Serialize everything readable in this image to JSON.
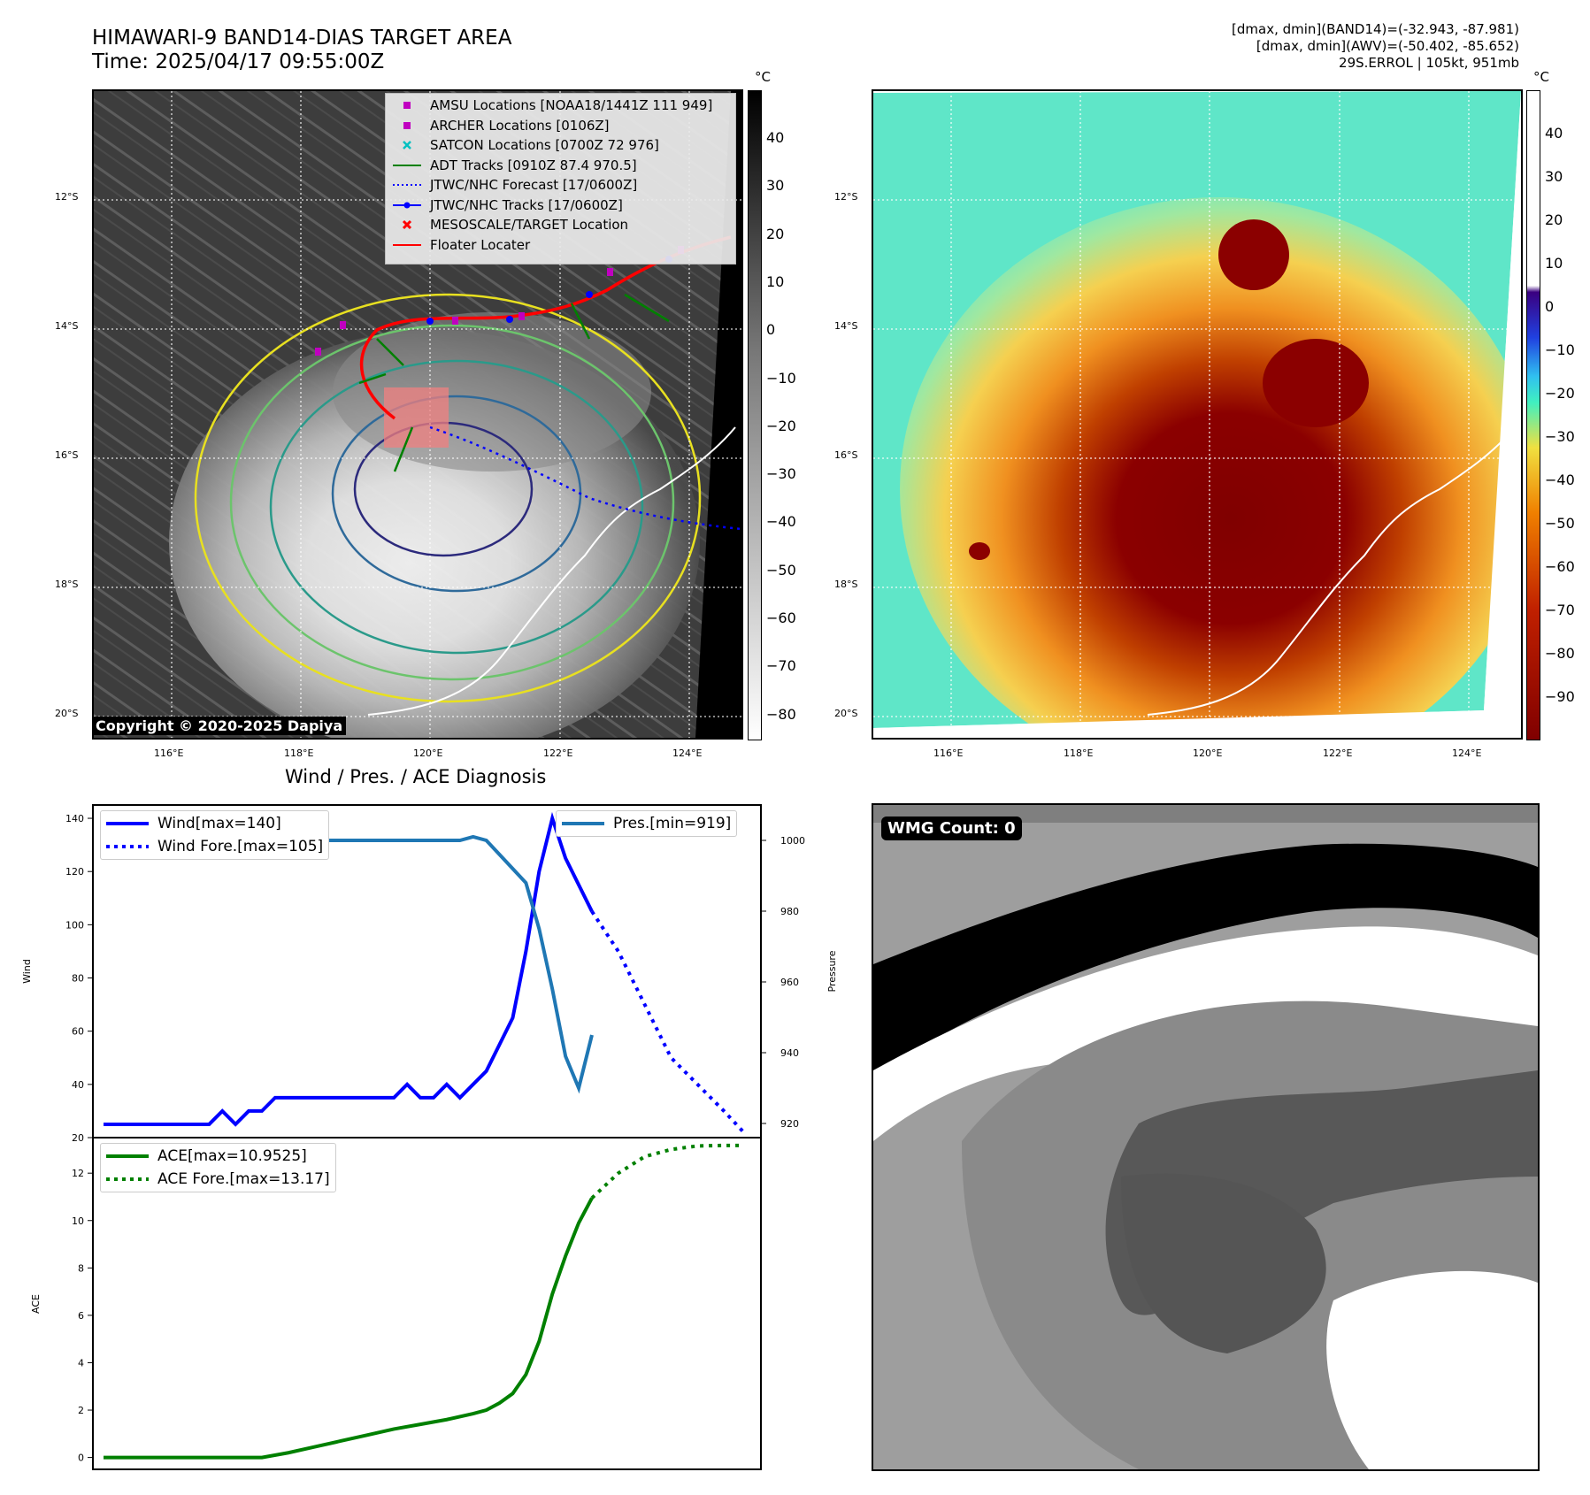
{
  "header": {
    "title_line1": "HIMAWARI-9 BAND14-DIAS TARGET AREA",
    "title_line2": "Time: 2025/04/17 09:55:00Z",
    "right_line1": "[dmax, dmin](BAND14)=(-32.943, -87.981)",
    "right_line2": "[dmax, dmin](AWV)=(-50.402, -85.652)",
    "right_line3": "29S.ERROL | 105kt, 951mb"
  },
  "maps": {
    "lat_ticks": [
      "12°S",
      "14°S",
      "16°S",
      "18°S",
      "20°S"
    ],
    "lon_ticks": [
      "116°E",
      "118°E",
      "120°E",
      "122°E",
      "124°E"
    ],
    "unit": "°C",
    "left_colorbar_ticks": [
      "40",
      "30",
      "20",
      "10",
      "0",
      "−10",
      "−20",
      "−30",
      "−40",
      "−50",
      "−60",
      "−70",
      "−80"
    ],
    "right_colorbar_ticks": [
      "40",
      "30",
      "20",
      "10",
      "0",
      "−10",
      "−20",
      "−30",
      "−40",
      "−50",
      "−60",
      "−70",
      "−80",
      "−90"
    ],
    "copyright": "Copyright © 2020-2025 Dapiya",
    "legend": [
      {
        "label": "AMSU Locations [NOAA18/1441Z 111 949]",
        "marker": "square",
        "color": "#c000c0"
      },
      {
        "label": "ARCHER Locations [0106Z]",
        "marker": "square",
        "color": "#c000c0"
      },
      {
        "label": "SATCON Locations [0700Z 72 976]",
        "marker": "x",
        "color": "#00c0c0"
      },
      {
        "label": "ADT Tracks [0910Z 87.4 970.5]",
        "marker": "line",
        "color": "#008000"
      },
      {
        "label": "JTWC/NHC Forecast [17/0600Z]",
        "marker": "dotted",
        "color": "#0000ff"
      },
      {
        "label": "JTWC/NHC Tracks [17/0600Z]",
        "marker": "line-dot",
        "color": "#0000ff"
      },
      {
        "label": "MESOSCALE/TARGET Location",
        "marker": "x",
        "color": "#ff0000"
      },
      {
        "label": "Floater Locater",
        "marker": "line",
        "color": "#ff0000"
      }
    ]
  },
  "diagnosis": {
    "title": "Wind / Pres. / ACE Diagnosis",
    "wind_ylabel": "Wind",
    "pressure_ylabel": "Pressure",
    "ace_ylabel": "ACE",
    "legend_wind": "Wind[max=140]",
    "legend_wind_fore": "Wind Fore.[max=105]",
    "legend_pres": "Pres.[min=919]",
    "legend_ace": "ACE[max=10.9525]",
    "legend_ace_fore": "ACE Fore.[max=13.17]"
  },
  "wmg": {
    "label": "WMG Count: 0"
  },
  "chart_data": [
    {
      "type": "line",
      "title": "Wind / Pres. / ACE Diagnosis",
      "ylabel": "Wind",
      "ylim": [
        20,
        145
      ],
      "y_ticks": [
        20,
        40,
        60,
        80,
        100,
        120,
        140
      ],
      "colors": {
        "wind": "#0000ff",
        "pressure": "#1f77b4"
      },
      "series": [
        {
          "name": "Wind[max=140]",
          "axis": "left",
          "style": "solid",
          "x": [
            0,
            1,
            2,
            3,
            4,
            5,
            6,
            7,
            8,
            9,
            10,
            11,
            12,
            13,
            14,
            15,
            16,
            17,
            18,
            19,
            20,
            21,
            22,
            23,
            24,
            25,
            26,
            27,
            28,
            29,
            30,
            31,
            32,
            33,
            34,
            35,
            36,
            37
          ],
          "values": [
            25,
            25,
            25,
            25,
            25,
            25,
            25,
            25,
            25,
            30,
            25,
            30,
            30,
            35,
            35,
            35,
            35,
            35,
            35,
            35,
            35,
            35,
            35,
            40,
            35,
            35,
            40,
            35,
            40,
            45,
            55,
            65,
            90,
            120,
            140,
            125,
            115,
            105
          ]
        },
        {
          "name": "Wind Fore.[max=105]",
          "axis": "left",
          "style": "dotted",
          "x": [
            37,
            39,
            41,
            43,
            45,
            47,
            48.5
          ],
          "values": [
            105,
            90,
            70,
            50,
            40,
            30,
            22
          ]
        },
        {
          "name": "Pres.[min=919]",
          "axis": "right",
          "style": "solid",
          "ylim": [
            916,
            1010
          ],
          "y_ticks": [
            920,
            940,
            960,
            980,
            1000
          ],
          "x": [
            0,
            1,
            2,
            3,
            4,
            5,
            6,
            7,
            8,
            9,
            10,
            11,
            12,
            13,
            14,
            15,
            16,
            17,
            18,
            19,
            20,
            21,
            22,
            23,
            24,
            25,
            26,
            27,
            28,
            29,
            30,
            31,
            32,
            33,
            34,
            35,
            36,
            37
          ],
          "values": [
            1008,
            1006,
            1006,
            1004,
            1002,
            1002,
            1000,
            1000,
            1000,
            1000,
            1000,
            1000,
            1000,
            1000,
            1000,
            1000,
            1000,
            1000,
            1000,
            1000,
            1000,
            1000,
            1000,
            1000,
            1000,
            1000,
            1000,
            1000,
            1001,
            1000,
            996,
            992,
            988,
            975,
            958,
            939,
            930,
            945
          ]
        }
      ],
      "pressure_ylabel": "Pressure"
    },
    {
      "type": "line",
      "ylabel": "ACE",
      "ylim": [
        -0.5,
        13.5
      ],
      "y_ticks": [
        0,
        2,
        4,
        6,
        8,
        10,
        12
      ],
      "colors": {
        "ace": "#008000"
      },
      "series": [
        {
          "name": "ACE[max=10.9525]",
          "style": "solid",
          "x": [
            0,
            2,
            4,
            6,
            8,
            10,
            12,
            14,
            16,
            18,
            20,
            22,
            24,
            26,
            28,
            29,
            30,
            31,
            32,
            33,
            34,
            35,
            36,
            37
          ],
          "values": [
            0,
            0,
            0,
            0,
            0,
            0,
            0,
            0.2,
            0.45,
            0.7,
            0.95,
            1.2,
            1.4,
            1.6,
            1.85,
            2.0,
            2.3,
            2.7,
            3.5,
            4.9,
            6.9,
            8.5,
            9.9,
            10.95
          ]
        },
        {
          "name": "ACE Fore.[max=13.17]",
          "style": "dotted",
          "x": [
            37,
            39,
            41,
            43,
            45,
            47,
            48.5
          ],
          "values": [
            10.95,
            12.0,
            12.7,
            13.0,
            13.15,
            13.17,
            13.17
          ]
        }
      ]
    }
  ]
}
